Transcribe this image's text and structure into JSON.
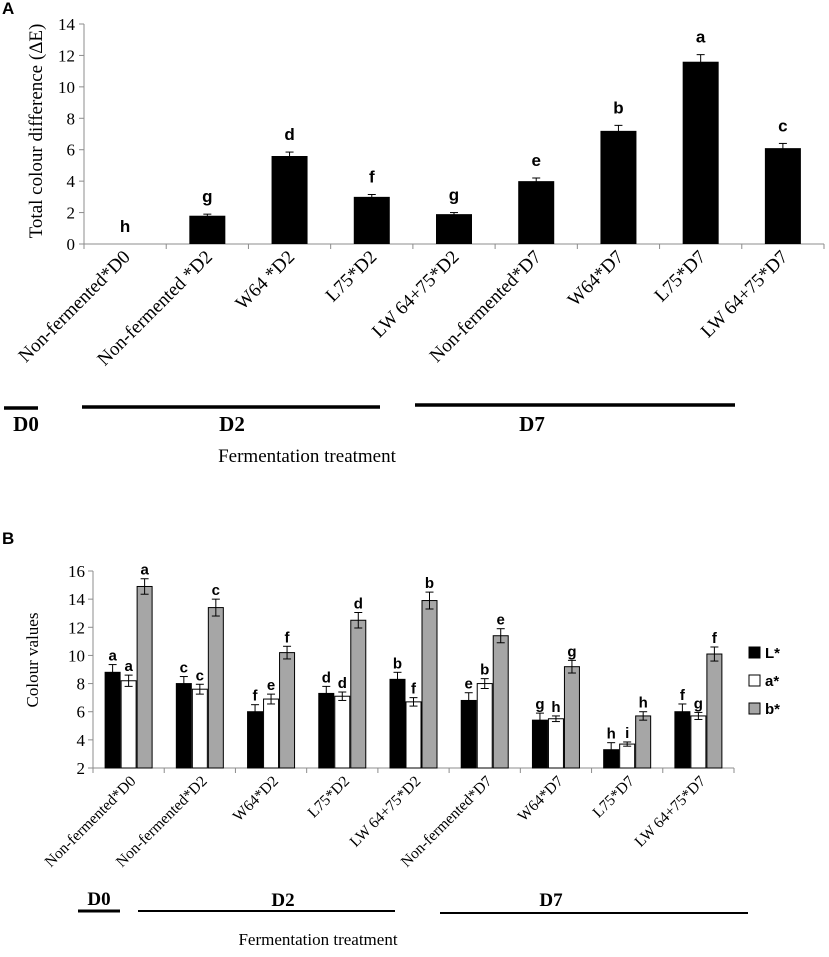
{
  "chart_data": [
    {
      "panel": "A",
      "type": "bar",
      "title": "",
      "ylabel": "Total colour difference (ΔE)",
      "xlabel": "Fermentation treatment",
      "ylim": [
        0,
        14
      ],
      "yticks": [
        0,
        2,
        4,
        6,
        8,
        10,
        12,
        14
      ],
      "categories": [
        "Non-fermented*D0",
        "Non-fermented *D2",
        "W64 *D2",
        "L75*D2",
        "LW 64+75*D2",
        "Non-fermented*D7",
        "W64*D7",
        "L75*D7",
        "LW 64+75*D7"
      ],
      "series": [
        {
          "name": "ΔE",
          "color": "#000000",
          "values": [
            0,
            1.8,
            5.6,
            3.0,
            1.9,
            4.0,
            7.2,
            11.6,
            6.1
          ],
          "errors": [
            0,
            0.1,
            0.25,
            0.15,
            0.1,
            0.2,
            0.35,
            0.45,
            0.3
          ],
          "letters": [
            "h",
            "g",
            "d",
            "f",
            "g",
            "e",
            "b",
            "a",
            "c"
          ]
        }
      ],
      "groups": [
        "D0",
        "D2",
        "D7"
      ]
    },
    {
      "panel": "B",
      "type": "bar",
      "title": "",
      "ylabel": "Colour values",
      "xlabel": "Fermentation treatment",
      "ylim": [
        2,
        16
      ],
      "yticks": [
        2,
        4,
        6,
        8,
        10,
        12,
        14,
        16
      ],
      "legend_position": "right",
      "categories": [
        "Non-fermented*D0",
        "Non-fermented*D2",
        "W64*D2",
        "L75*D2",
        "LW 64+75*D2",
        "Non-fermented*D7",
        "W64*D7",
        "L75*D7",
        "LW 64+75*D7"
      ],
      "series": [
        {
          "name": "L*",
          "color": "#000000",
          "values": [
            8.8,
            8.0,
            6.0,
            7.3,
            8.3,
            6.8,
            5.4,
            3.3,
            6.0
          ],
          "errors": [
            0.55,
            0.5,
            0.5,
            0.5,
            0.5,
            0.55,
            0.5,
            0.5,
            0.55
          ],
          "letters": [
            "a",
            "c",
            "f",
            "d",
            "b",
            "e",
            "g",
            "h",
            "f"
          ]
        },
        {
          "name": "a*",
          "color": "#ffffff",
          "values": [
            8.2,
            7.6,
            6.9,
            7.1,
            6.7,
            8.0,
            5.5,
            3.7,
            5.7
          ],
          "errors": [
            0.4,
            0.35,
            0.35,
            0.3,
            0.3,
            0.35,
            0.2,
            0.15,
            0.25
          ],
          "letters": [
            "a",
            "c",
            "e",
            "d",
            "f",
            "b",
            "h",
            "i",
            "g"
          ]
        },
        {
          "name": "b*",
          "color": "#a6a6a6",
          "values": [
            14.9,
            13.4,
            10.2,
            12.5,
            13.9,
            11.4,
            9.2,
            5.7,
            10.1
          ],
          "errors": [
            0.55,
            0.6,
            0.45,
            0.55,
            0.6,
            0.5,
            0.45,
            0.3,
            0.5
          ],
          "letters": [
            "a",
            "c",
            "f",
            "d",
            "b",
            "e",
            "g",
            "h",
            "f"
          ]
        }
      ],
      "groups": [
        "D0",
        "D2",
        "D7"
      ]
    }
  ]
}
